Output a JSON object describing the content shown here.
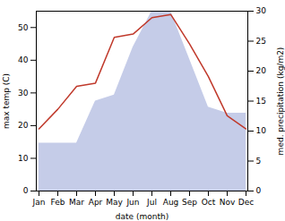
{
  "chart_data": {
    "type": "line",
    "categories": [
      "Jan",
      "Feb",
      "Mar",
      "Apr",
      "May",
      "Jun",
      "Jul",
      "Aug",
      "Sep",
      "Oct",
      "Nov",
      "Dec"
    ],
    "xlabel": "date (month)",
    "ylabel": "max temp (C)",
    "y2label": "med. precipitation (kg/m2)",
    "ylim": [
      0,
      55
    ],
    "yticks": [
      0,
      10,
      20,
      30,
      40,
      50
    ],
    "y2lim": [
      0,
      30
    ],
    "y2ticks": [
      0,
      5,
      10,
      15,
      20,
      25,
      30
    ],
    "series": [
      {
        "type": "area",
        "axis": "y2",
        "color": "#c5cce8",
        "values": [
          8,
          8,
          8,
          15,
          16,
          24,
          30,
          30,
          22,
          14,
          13,
          13
        ]
      },
      {
        "type": "line",
        "color": "#c0392b",
        "values": [
          19,
          25,
          32,
          33,
          47,
          48,
          53,
          54,
          45,
          35,
          23,
          19
        ]
      }
    ]
  }
}
